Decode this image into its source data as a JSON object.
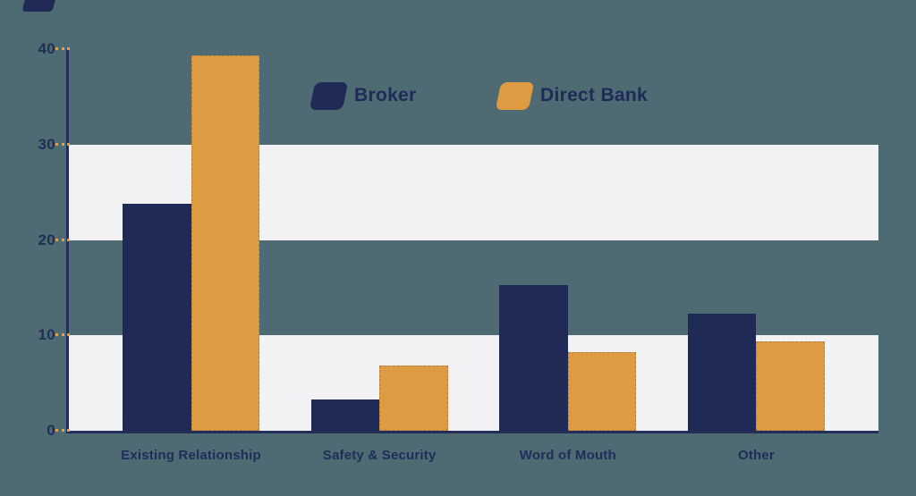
{
  "chart_data": {
    "type": "bar",
    "title": "",
    "categories": [
      "Existing Relationship",
      "Safety & Security",
      "Word of Mouth",
      "Other"
    ],
    "series": [
      {
        "name": "Broker",
        "color": "#1f2b56",
        "values": [
          23.8,
          3.3,
          15.3,
          12.3
        ]
      },
      {
        "name": "Direct Bank",
        "color": "#df9b42",
        "values": [
          39.3,
          6.8,
          8.2,
          9.4
        ]
      }
    ],
    "xlabel": "",
    "ylabel": "",
    "ylim": [
      0,
      40
    ],
    "yticks": [
      0,
      10,
      20,
      30,
      40
    ],
    "shaded_bands": [
      [
        20,
        30
      ],
      [
        0,
        10
      ]
    ],
    "grid": "alternating horizontal shaded bands",
    "legend_position": "top-center"
  },
  "colors": {
    "background": "#4e6a72",
    "band": "#f2f1f4",
    "axis": "#222e55",
    "tick_dash": "#dfa14b",
    "label_text": "#202d5b"
  }
}
